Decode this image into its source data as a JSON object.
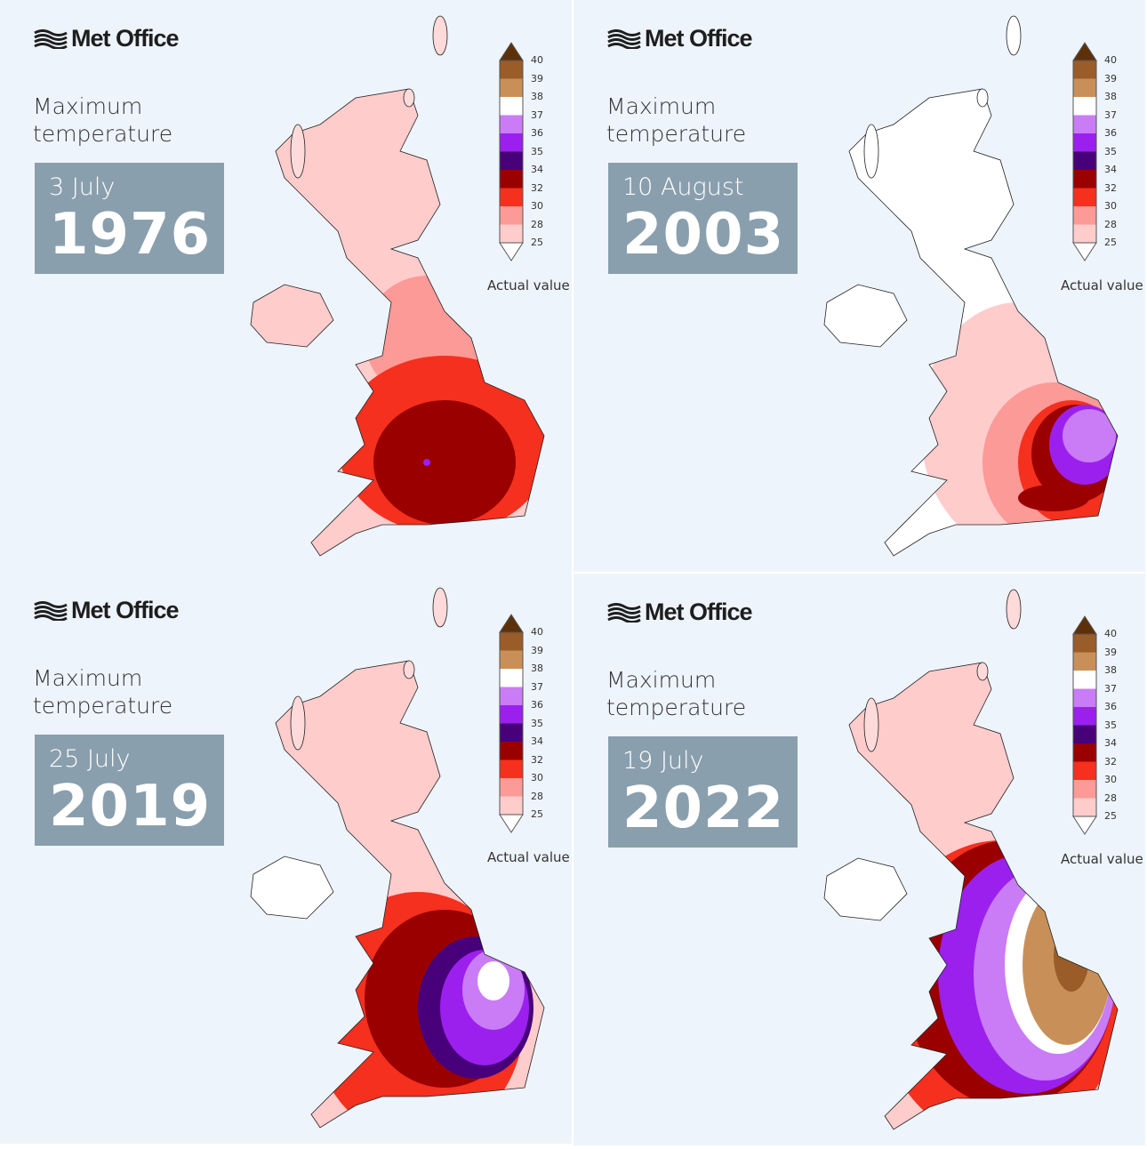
{
  "brand": "Met Office",
  "subtitle": "Maximum temperature",
  "panels": [
    {
      "date": "3 July",
      "year": "1976"
    },
    {
      "date": "10 August",
      "year": "2003"
    },
    {
      "date": "25 July",
      "year": "2019"
    },
    {
      "date": "19 July",
      "year": "2022"
    }
  ],
  "legend": {
    "title": "Actual value (°C)",
    "ticks": [
      "40",
      "39",
      "38",
      "37",
      "36",
      "35",
      "34",
      "32",
      "30",
      "28",
      "25"
    ],
    "band_colors": [
      "#9a5c28",
      "#c89058",
      "#ffffff",
      "#c97cf5",
      "#9b20ee",
      "#48007a",
      "#9a0000",
      "#f5301e",
      "#fb9a96",
      "#ffcccc"
    ],
    "over_color": "#5e300a",
    "under_color": "#ffffff"
  }
}
